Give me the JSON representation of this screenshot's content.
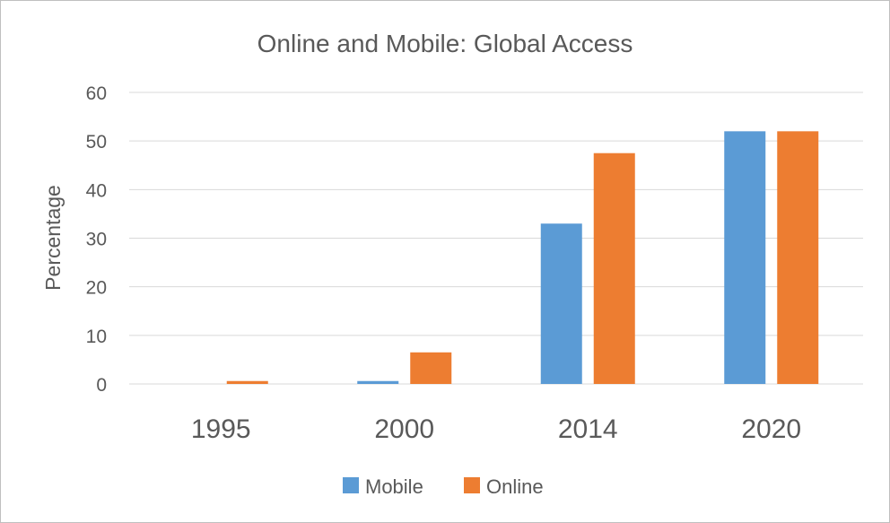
{
  "chart_data": {
    "type": "bar",
    "title": "Online and Mobile: Global Access",
    "xlabel": "",
    "ylabel": "Percentage",
    "categories": [
      "1995",
      "2000",
      "2014",
      "2020"
    ],
    "series": [
      {
        "name": "Mobile",
        "color": "#5b9bd5",
        "values": [
          0,
          0.6,
          33,
          52
        ]
      },
      {
        "name": "Online",
        "color": "#ed7d31",
        "values": [
          0.6,
          6.5,
          47.5,
          52
        ]
      }
    ],
    "ylim": [
      0,
      60
    ],
    "yticks": [
      0,
      10,
      20,
      30,
      40,
      50,
      60
    ],
    "grid": true,
    "legend": "bottom"
  }
}
